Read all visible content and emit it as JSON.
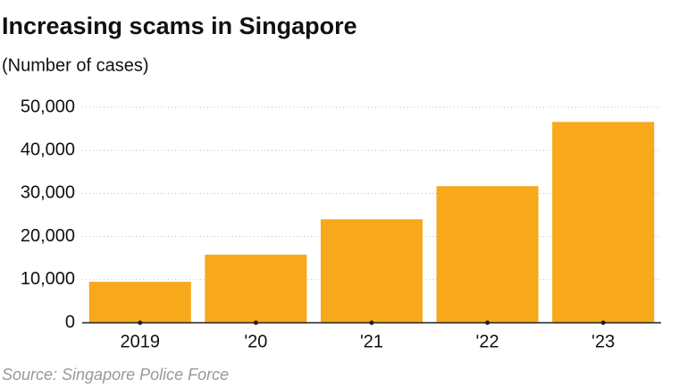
{
  "chart_data": {
    "type": "bar",
    "title": "Increasing scams in Singapore",
    "subtitle": "(Number of cases)",
    "categories": [
      "2019",
      "'20",
      "'21",
      "'22",
      "'23"
    ],
    "values": [
      9500,
      15800,
      24000,
      31700,
      46600
    ],
    "color": "#f7a81b",
    "ylim": [
      0,
      50000
    ],
    "yticks": [
      0,
      {
        "value": 10000,
        "label": "10,000"
      },
      {
        "value": 20000,
        "label": "20,000"
      },
      {
        "value": 30000,
        "label": "30,000"
      },
      {
        "value": 40000,
        "label": "40,000"
      },
      {
        "value": 50000,
        "label": "50,000"
      }
    ],
    "grid": true,
    "source": "Source: Singapore Police Force"
  }
}
